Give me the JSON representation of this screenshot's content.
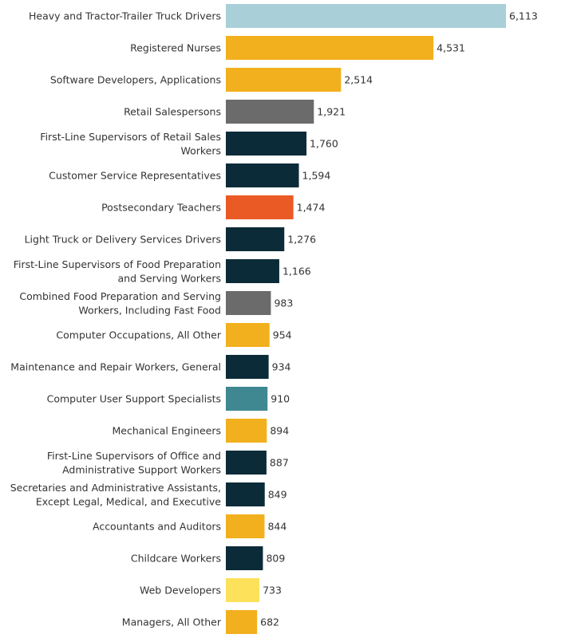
{
  "chart_data": {
    "type": "bar",
    "orientation": "horizontal",
    "title": "",
    "xlabel": "",
    "ylabel": "",
    "xlim": [
      0,
      6500
    ],
    "grid": false,
    "legend": "none",
    "categories": [
      "Heavy and Tractor-Trailer Truck Drivers",
      "Registered Nurses",
      "Software Developers, Applications",
      "Retail Salespersons",
      "First-Line Supervisors of Retail Sales Workers",
      "Customer Service Representatives",
      "Postsecondary Teachers",
      "Light Truck or Delivery Services Drivers",
      "First-Line Supervisors of Food Preparation and Serving Workers",
      "Combined Food Preparation and Serving Workers, Including Fast Food",
      "Computer Occupations, All Other",
      "Maintenance and Repair Workers, General",
      "Computer User Support Specialists",
      "Mechanical Engineers",
      "First-Line Supervisors of Office and Administrative Support Workers",
      "Secretaries and Administrative Assistants, Except Legal, Medical, and Executive",
      "Accountants and Auditors",
      "Childcare Workers",
      "Web Developers",
      "Managers, All Other"
    ],
    "label_lines": [
      [
        "Heavy and Tractor-Trailer Truck Drivers"
      ],
      [
        "Registered Nurses"
      ],
      [
        "Software Developers, Applications"
      ],
      [
        "Retail Salespersons"
      ],
      [
        "First-Line Supervisors of Retail Sales",
        "Workers"
      ],
      [
        "Customer Service Representatives"
      ],
      [
        "Postsecondary Teachers"
      ],
      [
        "Light Truck or Delivery Services Drivers"
      ],
      [
        "First-Line Supervisors of Food Preparation",
        "and Serving Workers"
      ],
      [
        "Combined Food Preparation and Serving",
        "Workers, Including Fast Food"
      ],
      [
        "Computer Occupations, All Other"
      ],
      [
        "Maintenance and Repair Workers, General"
      ],
      [
        "Computer User Support Specialists"
      ],
      [
        "Mechanical Engineers"
      ],
      [
        "First-Line Supervisors of Office and",
        "Administrative Support Workers"
      ],
      [
        "Secretaries and Administrative Assistants,",
        "Except Legal, Medical, and Executive"
      ],
      [
        "Accountants and Auditors"
      ],
      [
        "Childcare Workers"
      ],
      [
        "Web Developers"
      ],
      [
        "Managers, All Other"
      ]
    ],
    "values": [
      6113,
      4531,
      2514,
      1921,
      1760,
      1594,
      1474,
      1276,
      1166,
      983,
      954,
      934,
      910,
      894,
      887,
      849,
      844,
      809,
      733,
      682
    ],
    "value_labels": [
      "6,113",
      "4,531",
      "2,514",
      "1,921",
      "1,760",
      "1,594",
      "1,474",
      "1,276",
      "1,166",
      "983",
      "954",
      "934",
      "910",
      "894",
      "887",
      "849",
      "844",
      "809",
      "733",
      "682"
    ],
    "colors": [
      "#a9cfd8",
      "#f2b01e",
      "#f2b01e",
      "#6b6b6b",
      "#0c2b38",
      "#0c2b38",
      "#ea5a24",
      "#0c2b38",
      "#0c2b38",
      "#6b6b6b",
      "#f2b01e",
      "#0c2b38",
      "#3f8791",
      "#f2b01e",
      "#0c2b38",
      "#0c2b38",
      "#f2b01e",
      "#0c2b38",
      "#fde15a",
      "#f2b01e"
    ]
  }
}
